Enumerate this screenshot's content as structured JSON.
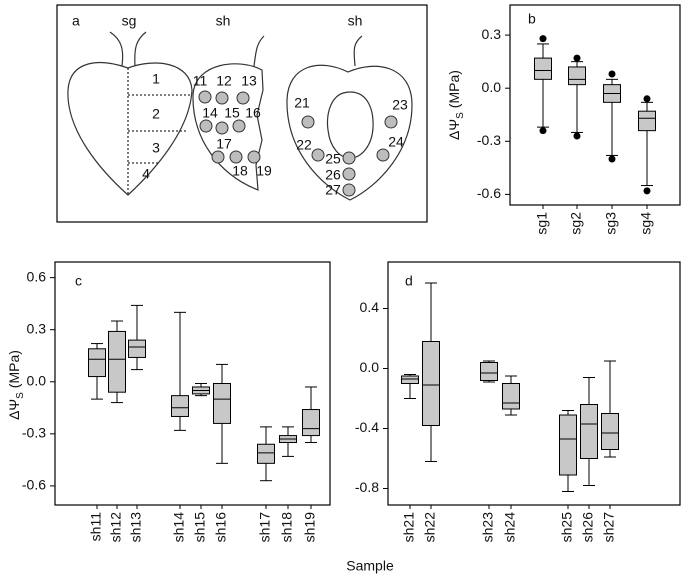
{
  "diagram": {
    "label": "a",
    "titles": [
      "sg",
      "sh",
      "sh"
    ],
    "regions": [
      "1",
      "2",
      "3",
      "4"
    ],
    "points": [
      "11",
      "12",
      "13",
      "14",
      "15",
      "16",
      "17",
      "18",
      "19",
      "21",
      "22",
      "23",
      "24",
      "25",
      "26",
      "27"
    ]
  },
  "x_label": "Sample",
  "chart_data": [
    {
      "type": "box",
      "label": "b",
      "y_label": [
        "ΔΨ",
        "S",
        "(MPa)"
      ],
      "color": "#c8c8c8",
      "categories": [
        "sg1",
        "sg2",
        "sg3",
        "sg4"
      ],
      "min": [
        -0.22,
        -0.25,
        -0.38,
        -0.55
      ],
      "q1": [
        0.05,
        0.02,
        -0.08,
        -0.24
      ],
      "median": [
        0.1,
        0.05,
        -0.03,
        -0.17
      ],
      "q3": [
        0.17,
        0.12,
        0.02,
        -0.13
      ],
      "max": [
        0.25,
        0.15,
        0.05,
        -0.08
      ],
      "outliers_high": [
        0.28,
        0.17,
        0.08,
        -0.06
      ],
      "outliers_low": [
        -0.24,
        -0.27,
        -0.4,
        -0.58
      ],
      "ylim": [
        -0.66,
        0.47
      ],
      "yticks": [
        -0.6,
        -0.3,
        {
          "value": 0,
          "label": "0.0"
        },
        0.3
      ]
    },
    {
      "type": "box",
      "label": "c",
      "y_label": [
        "ΔΨ",
        "S",
        "(MPa)"
      ],
      "color": "#c8c8c8",
      "categories": [
        "sh11",
        "sh12",
        "sh13",
        "sh14",
        "sh15",
        "sh16",
        "sh17",
        "sh18",
        "sh19"
      ],
      "min": [
        -0.1,
        -0.12,
        0.07,
        -0.28,
        -0.08,
        -0.47,
        -0.57,
        -0.43,
        -0.35
      ],
      "q1": [
        0.03,
        -0.06,
        0.14,
        -0.2,
        -0.07,
        -0.24,
        -0.47,
        -0.35,
        -0.31
      ],
      "median": [
        0.13,
        0.13,
        0.2,
        -0.15,
        -0.05,
        -0.1,
        -0.41,
        -0.33,
        -0.27
      ],
      "q3": [
        0.19,
        0.29,
        0.24,
        -0.08,
        -0.03,
        -0.01,
        -0.36,
        -0.31,
        -0.16
      ],
      "max": [
        0.22,
        0.35,
        0.44,
        0.4,
        -0.01,
        0.1,
        -0.26,
        -0.26,
        -0.03
      ],
      "ylim": [
        -0.71,
        0.69
      ],
      "yticks": [
        -0.6,
        -0.3,
        {
          "value": 0,
          "label": "0.0"
        },
        0.3,
        0.6
      ]
    },
    {
      "type": "box",
      "label": "d",
      "color": "#c8c8c8",
      "categories": [
        "sh21",
        "sh22",
        "sh23",
        "sh24",
        "sh25",
        "sh26",
        "sh27"
      ],
      "min": [
        -0.2,
        -0.62,
        -0.09,
        -0.31,
        -0.82,
        -0.78,
        -0.59
      ],
      "q1": [
        -0.1,
        -0.38,
        -0.08,
        -0.27,
        -0.71,
        -0.6,
        -0.54
      ],
      "median": [
        -0.07,
        -0.11,
        -0.03,
        -0.23,
        -0.47,
        -0.37,
        -0.43
      ],
      "q3": [
        -0.05,
        0.18,
        0.04,
        -0.1,
        -0.31,
        -0.24,
        -0.3
      ],
      "max": [
        -0.04,
        0.57,
        0.05,
        -0.05,
        -0.28,
        -0.06,
        0.05
      ],
      "ylim": [
        -0.91,
        0.71
      ],
      "yticks": [
        -0.8,
        -0.4,
        {
          "value": 0,
          "label": "0.0"
        },
        0.4
      ]
    }
  ]
}
